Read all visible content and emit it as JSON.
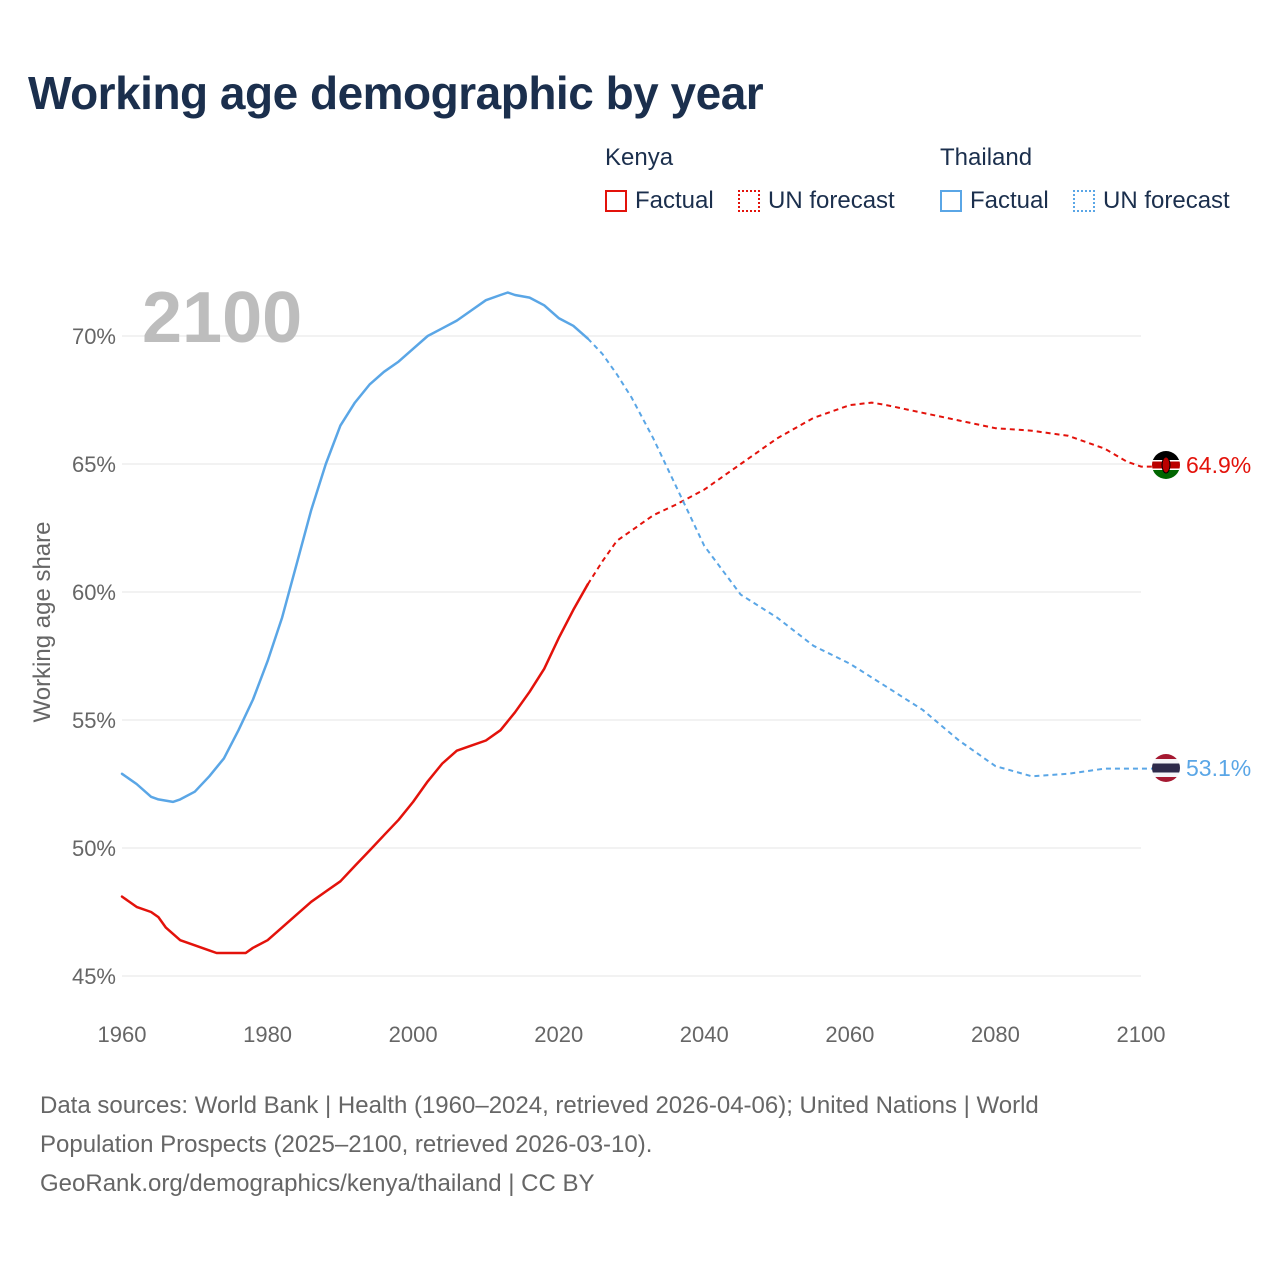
{
  "title": "Working age demographic by year",
  "year_overlay": "2100",
  "legend": {
    "groups": [
      {
        "country": "Kenya",
        "factual_label": "Factual",
        "forecast_label": "UN forecast",
        "color": "#e3120b"
      },
      {
        "country": "Thailand",
        "factual_label": "Factual",
        "forecast_label": "UN forecast",
        "color": "#5aa6e6"
      }
    ]
  },
  "footer": {
    "line1": "Data sources: World Bank | Health (1960–2024, retrieved 2026-04-06); United Nations | World",
    "line2": "Population Prospects (2025–2100, retrieved 2026-03-10).",
    "line3": "GeoRank.org/demographics/kenya/thailand | CC BY"
  },
  "chart_data": {
    "type": "line",
    "title": "Working age demographic by year",
    "xlabel": "",
    "ylabel": "Working age share",
    "xlim": [
      1960,
      2100
    ],
    "ylim": [
      45,
      72
    ],
    "x_ticks": [
      1960,
      1980,
      2000,
      2020,
      2040,
      2060,
      2080,
      2100
    ],
    "x_tick_labels": [
      "1960",
      "1980",
      "2000",
      "2020",
      "2040",
      "2060",
      "2080",
      "2100"
    ],
    "y_ticks": [
      45,
      50,
      55,
      60,
      65,
      70
    ],
    "y_tick_labels": [
      "45%",
      "50%",
      "55%",
      "60%",
      "65%",
      "70%"
    ],
    "grid": "horizontal",
    "factual_end_year": 2024,
    "series": [
      {
        "name": "Kenya",
        "color": "#e3120b",
        "end_label": "64.9%",
        "flag": "kenya",
        "x": [
          1960,
          1962,
          1964,
          1965,
          1966,
          1968,
          1970,
          1972,
          1973,
          1975,
          1977,
          1978,
          1980,
          1982,
          1984,
          1986,
          1988,
          1990,
          1992,
          1994,
          1996,
          1998,
          2000,
          2002,
          2004,
          2006,
          2008,
          2010,
          2012,
          2014,
          2016,
          2018,
          2020,
          2022,
          2024,
          2026,
          2028,
          2030,
          2033,
          2036,
          2040,
          2045,
          2050,
          2055,
          2060,
          2063,
          2065,
          2070,
          2075,
          2080,
          2085,
          2090,
          2095,
          2098,
          2100
        ],
        "values": [
          48.1,
          47.7,
          47.5,
          47.3,
          46.9,
          46.4,
          46.2,
          46.0,
          45.9,
          45.9,
          45.9,
          46.1,
          46.4,
          46.9,
          47.4,
          47.9,
          48.3,
          48.7,
          49.3,
          49.9,
          50.5,
          51.1,
          51.8,
          52.6,
          53.3,
          53.8,
          54.0,
          54.2,
          54.6,
          55.3,
          56.1,
          57.0,
          58.2,
          59.3,
          60.3,
          61.2,
          62.0,
          62.4,
          63.0,
          63.4,
          64.0,
          65.0,
          66.0,
          66.8,
          67.3,
          67.4,
          67.3,
          67.0,
          66.7,
          66.4,
          66.3,
          66.1,
          65.6,
          65.1,
          64.9
        ]
      },
      {
        "name": "Thailand",
        "color": "#5aa6e6",
        "end_label": "53.1%",
        "flag": "thailand",
        "x": [
          1960,
          1962,
          1964,
          1965,
          1967,
          1968,
          1970,
          1972,
          1974,
          1976,
          1978,
          1980,
          1982,
          1984,
          1986,
          1988,
          1990,
          1992,
          1994,
          1996,
          1998,
          2000,
          2002,
          2004,
          2006,
          2008,
          2010,
          2012,
          2013,
          2014,
          2016,
          2018,
          2020,
          2022,
          2024,
          2026,
          2028,
          2030,
          2033,
          2036,
          2040,
          2045,
          2050,
          2055,
          2060,
          2065,
          2070,
          2075,
          2080,
          2085,
          2090,
          2095,
          2100
        ],
        "values": [
          52.9,
          52.5,
          52.0,
          51.9,
          51.8,
          51.9,
          52.2,
          52.8,
          53.5,
          54.6,
          55.8,
          57.3,
          59.0,
          61.1,
          63.2,
          65.0,
          66.5,
          67.4,
          68.1,
          68.6,
          69.0,
          69.5,
          70.0,
          70.3,
          70.6,
          71.0,
          71.4,
          71.6,
          71.7,
          71.6,
          71.5,
          71.2,
          70.7,
          70.4,
          69.9,
          69.3,
          68.5,
          67.6,
          66.0,
          64.2,
          61.8,
          59.9,
          59.0,
          57.9,
          57.2,
          56.3,
          55.4,
          54.2,
          53.2,
          52.8,
          52.9,
          53.1,
          53.1
        ]
      }
    ]
  }
}
